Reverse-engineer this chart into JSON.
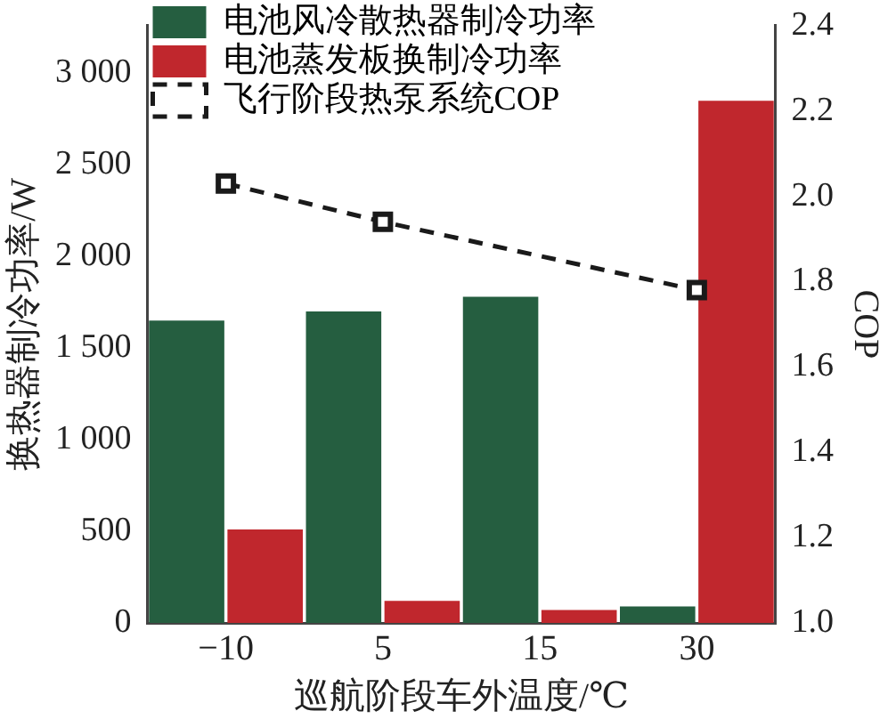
{
  "chart_data": {
    "type": "bar",
    "xlabel": "巡航阶段车外温度/℃",
    "ylabel": "换热器制冷功率/W",
    "y2label": "COP",
    "categories": [
      "−10",
      "5",
      "15",
      "30"
    ],
    "series": [
      {
        "name": "电池风冷散热器制冷功率",
        "color": "#255e40",
        "values": [
          1650,
          1700,
          1780,
          90
        ]
      },
      {
        "name": "电池蒸发板换制冷功率",
        "color": "#c0272d",
        "values": [
          510,
          120,
          70,
          2850
        ]
      },
      {
        "name": "飞行阶段热泵系统COP",
        "type": "line",
        "axis": "y2",
        "color": "#1a1a1a",
        "values": [
          2.03,
          1.94,
          null,
          1.78
        ],
        "marker": "square",
        "line_style": "dashed"
      }
    ],
    "ylim": [
      0,
      3260
    ],
    "yticks": [
      0,
      500,
      {
        "value": 1000,
        "label": "1 000"
      },
      {
        "value": 1500,
        "label": "1 500"
      },
      {
        "value": 2000,
        "label": "2 000"
      },
      {
        "value": 2500,
        "label": "2 500"
      },
      {
        "value": 3000,
        "label": "3 000"
      }
    ],
    "y2lim": [
      1.0,
      2.4
    ],
    "y2ticks": [
      {
        "value": 1.0,
        "label": "1.0"
      },
      1.2,
      1.4,
      1.6,
      1.8,
      {
        "value": 2.0,
        "label": "2.0"
      },
      2.2,
      2.4
    ],
    "legend": "top",
    "grid": false
  }
}
